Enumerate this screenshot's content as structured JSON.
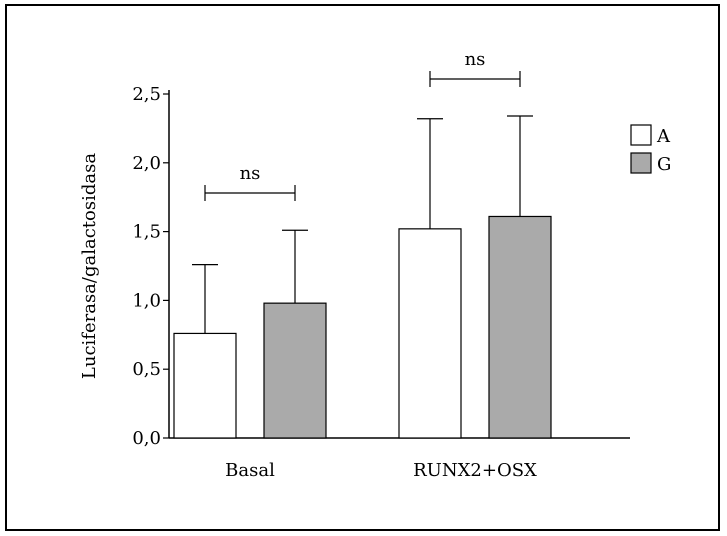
{
  "chart_data": {
    "type": "bar",
    "title": "",
    "xlabel": "",
    "ylabel": "Luciferasa/galactosidasa",
    "ylim": [
      0,
      2.5
    ],
    "yticks": [
      "0,0",
      "0,5",
      "1,0",
      "1,5",
      "2,0",
      "2,5"
    ],
    "ytick_values": [
      0,
      0.5,
      1.0,
      1.5,
      2.0,
      2.5
    ],
    "categories": [
      "Basal",
      "RUNX2+OSX"
    ],
    "series": [
      {
        "name": "A",
        "color": "#ffffff",
        "values": [
          0.76,
          1.52
        ],
        "errors": [
          0.5,
          0.8
        ]
      },
      {
        "name": "G",
        "color": "#aaaaaa",
        "values": [
          0.98,
          1.61
        ],
        "errors": [
          0.53,
          0.73
        ]
      }
    ],
    "annotations": [
      "ns",
      "ns"
    ],
    "legend_position": "top-right",
    "grid": false
  }
}
